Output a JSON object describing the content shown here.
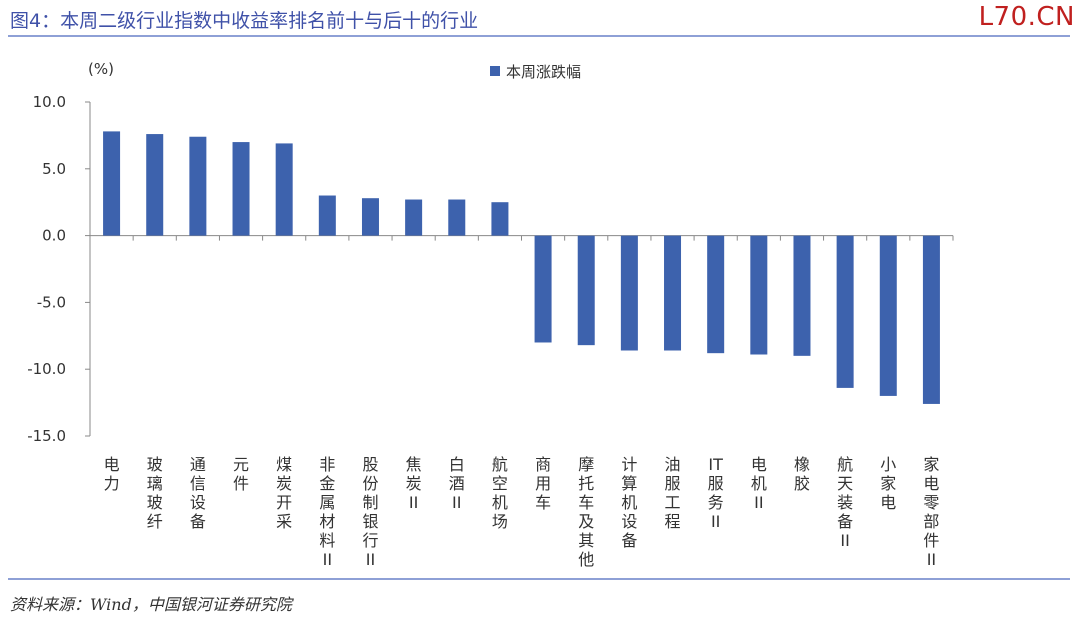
{
  "header": {
    "title": "图4：本周二级行业指数中收益率排名前十与后十的行业",
    "watermark": "L70.CN"
  },
  "source": "资料来源：Wind，中国银河证券研究院",
  "colors": {
    "bar": "#3d62ad",
    "tick_label_zero_up": "#333333",
    "tick_label_negative": "#c00000",
    "rule": "#8ea0d6"
  },
  "chart_data": {
    "type": "bar",
    "unit_label": "(%)",
    "legend_position": "top-center",
    "grid": false,
    "ylim": [
      -15,
      10
    ],
    "yticks": [
      10,
      5,
      0,
      -5,
      -10,
      -15
    ],
    "ytick_labels": [
      "10.0",
      "5.0",
      "0.0",
      "-5.0",
      "-10.0",
      "-15.0"
    ],
    "categories": [
      "电力",
      "玻璃玻纤",
      "通信设备",
      "元件",
      "煤炭开采",
      "非金属材料II",
      "股份制银行II",
      "焦炭II",
      "白酒II",
      "航空机场",
      "商用车",
      "摩托车及其他",
      "计算机设备",
      "油服工程",
      "IT服务II",
      "电机II",
      "橡胶",
      "航天装备II",
      "小家电",
      "家电零部件II"
    ],
    "series": [
      {
        "name": "本周涨跌幅",
        "values": [
          7.8,
          7.6,
          7.4,
          7.0,
          6.9,
          3.0,
          2.8,
          2.7,
          2.7,
          2.5,
          -8.0,
          -8.2,
          -8.6,
          -8.6,
          -8.8,
          -8.9,
          -9.0,
          -11.4,
          -12.0,
          -12.6
        ]
      }
    ]
  }
}
